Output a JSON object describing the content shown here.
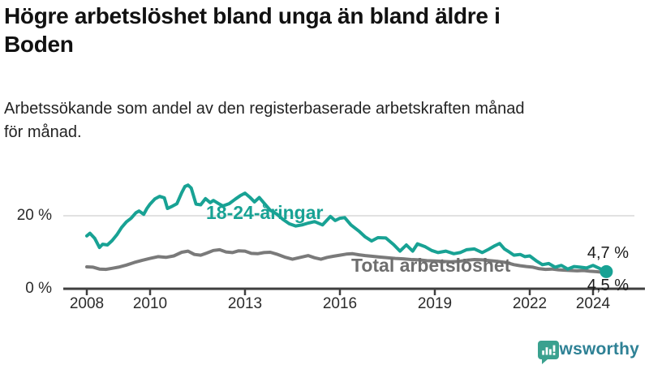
{
  "header": {
    "title_lines": [
      "Högre arbetslöshet bland unga än bland äldre i",
      "Boden"
    ],
    "subtitle_lines": [
      "Arbetssökande som andel av den registerbaserade arbetskraften månad",
      "för månad."
    ]
  },
  "chart_data": {
    "type": "line",
    "title": "Högre arbetslöshet bland unga än bland äldre i Boden",
    "subtitle": "Arbetssökande som andel av den registerbaserade arbetskraften månad för månad.",
    "xlabel": "",
    "ylabel": "",
    "grid": "horizontal-20-only",
    "legend_position": "inline-labels-on-lines",
    "xlim": [
      2008,
      2025.7
    ],
    "ylim": [
      0,
      32
    ],
    "x_ticks": [
      {
        "year": 2008,
        "label": "2008"
      },
      {
        "year": 2010,
        "label": "2010"
      },
      {
        "year": 2013,
        "label": "2013"
      },
      {
        "year": 2016,
        "label": "2016"
      },
      {
        "year": 2019,
        "label": "2019"
      },
      {
        "year": 2022,
        "label": "2022"
      },
      {
        "year": 2024,
        "label": "2024"
      }
    ],
    "y_ticks": [
      {
        "value": 20,
        "label": "20 %"
      },
      {
        "value": 0,
        "label": "0 %"
      }
    ],
    "series": [
      {
        "name": "18-24-åringar",
        "color": "#18a294",
        "end_dot": true,
        "last_value_label": "4,7 %",
        "x": [
          2008.0,
          2008.1,
          2008.25,
          2008.4,
          2008.5,
          2008.65,
          2008.8,
          2008.95,
          2009.1,
          2009.25,
          2009.4,
          2009.55,
          2009.65,
          2009.8,
          2009.9,
          2010.0,
          2010.15,
          2010.3,
          2010.45,
          2010.55,
          2010.7,
          2010.85,
          2011.0,
          2011.1,
          2011.2,
          2011.3,
          2011.45,
          2011.6,
          2011.75,
          2011.9,
          2012.0,
          2012.15,
          2012.3,
          2012.5,
          2012.7,
          2012.85,
          2013.0,
          2013.15,
          2013.3,
          2013.45,
          2013.6,
          2013.8,
          2014.0,
          2014.2,
          2014.4,
          2014.6,
          2014.8,
          2015.0,
          2015.2,
          2015.45,
          2015.7,
          2015.85,
          2016.0,
          2016.15,
          2016.35,
          2016.6,
          2016.8,
          2017.0,
          2017.2,
          2017.45,
          2017.7,
          2017.9,
          2018.1,
          2018.3,
          2018.45,
          2018.7,
          2018.9,
          2019.1,
          2019.35,
          2019.6,
          2019.8,
          2020.0,
          2020.25,
          2020.5,
          2020.7,
          2020.9,
          2021.05,
          2021.2,
          2021.35,
          2021.5,
          2021.7,
          2021.85,
          2022.0,
          2022.2,
          2022.4,
          2022.6,
          2022.8,
          2023.0,
          2023.2,
          2023.4,
          2023.6,
          2023.8,
          2024.0,
          2024.2,
          2024.42
        ],
        "values": [
          14.5,
          15.2,
          13.8,
          11.3,
          12.2,
          12.0,
          13.2,
          14.8,
          16.8,
          18.3,
          19.3,
          20.8,
          21.3,
          20.4,
          22.0,
          23.2,
          24.6,
          25.3,
          24.9,
          22.0,
          22.6,
          23.3,
          26.3,
          28.0,
          28.4,
          27.6,
          23.2,
          23.0,
          24.7,
          23.6,
          24.2,
          23.4,
          22.7,
          23.3,
          24.6,
          25.5,
          26.2,
          25.1,
          23.8,
          25.0,
          23.5,
          21.5,
          20.5,
          19.0,
          17.8,
          17.2,
          17.5,
          18.0,
          18.4,
          17.5,
          19.8,
          18.7,
          19.3,
          19.5,
          17.5,
          15.8,
          14.2,
          13.1,
          14.0,
          13.9,
          12.1,
          10.3,
          12.0,
          10.3,
          12.3,
          11.5,
          10.5,
          9.9,
          10.3,
          9.6,
          9.9,
          10.7,
          10.9,
          9.9,
          10.8,
          11.8,
          12.4,
          10.9,
          10.1,
          9.2,
          9.4,
          8.8,
          9.0,
          7.7,
          6.6,
          6.9,
          5.9,
          6.4,
          5.4,
          6.1,
          5.9,
          5.7,
          6.4,
          5.6,
          4.7
        ]
      },
      {
        "name": "Total arbetslöshet",
        "color": "#7a7a7a",
        "end_dot": false,
        "last_value_label": "4,5 %",
        "x": [
          2008.0,
          2008.2,
          2008.4,
          2008.6,
          2008.8,
          2009.0,
          2009.25,
          2009.5,
          2009.75,
          2010.0,
          2010.25,
          2010.5,
          2010.75,
          2011.0,
          2011.2,
          2011.4,
          2011.6,
          2011.8,
          2012.0,
          2012.2,
          2012.4,
          2012.6,
          2012.8,
          2013.0,
          2013.2,
          2013.4,
          2013.6,
          2013.8,
          2014.0,
          2014.25,
          2014.5,
          2014.75,
          2015.0,
          2015.2,
          2015.4,
          2015.6,
          2015.8,
          2016.0,
          2016.2,
          2016.4,
          2016.6,
          2016.8,
          2017.0,
          2017.25,
          2017.5,
          2017.75,
          2018.0,
          2018.25,
          2018.5,
          2018.75,
          2019.0,
          2019.25,
          2019.5,
          2019.75,
          2020.0,
          2020.25,
          2020.5,
          2020.75,
          2021.0,
          2021.25,
          2021.5,
          2021.7,
          2021.9,
          2022.1,
          2022.3,
          2022.5,
          2022.7,
          2022.9,
          2023.1,
          2023.3,
          2023.5,
          2023.7,
          2023.9,
          2024.1,
          2024.33
        ],
        "values": [
          6.0,
          5.9,
          5.4,
          5.3,
          5.6,
          5.9,
          6.5,
          7.2,
          7.8,
          8.3,
          8.8,
          8.6,
          9.0,
          10.0,
          10.3,
          9.4,
          9.2,
          9.8,
          10.5,
          10.7,
          10.1,
          9.9,
          10.4,
          10.3,
          9.7,
          9.6,
          9.9,
          10.0,
          9.5,
          8.7,
          8.1,
          8.6,
          9.1,
          8.5,
          8.1,
          8.6,
          8.9,
          9.2,
          9.5,
          9.6,
          9.3,
          9.1,
          8.9,
          8.7,
          8.5,
          8.3,
          8.2,
          8.0,
          7.9,
          7.7,
          7.6,
          7.5,
          7.4,
          7.5,
          7.8,
          8.0,
          7.9,
          7.7,
          7.5,
          7.2,
          6.6,
          6.3,
          6.1,
          5.9,
          5.5,
          5.3,
          5.4,
          5.2,
          5.1,
          5.0,
          4.9,
          5.0,
          4.8,
          4.7,
          4.5
        ]
      }
    ],
    "colors": {
      "gridline": "#d8d8d8",
      "axis": "#3f3f3f",
      "young_line": "#18a294",
      "total_line": "#7a7a7a",
      "total_label_text": "#6e6e6e",
      "value_label_text": "#1a1a1a"
    }
  },
  "footer": {
    "brand": "Newsworthy",
    "brand_text_color": "#2e8195",
    "brand_icon_color": "#3aa18f",
    "brand_icon": "bar-chart-speech-bubble"
  }
}
